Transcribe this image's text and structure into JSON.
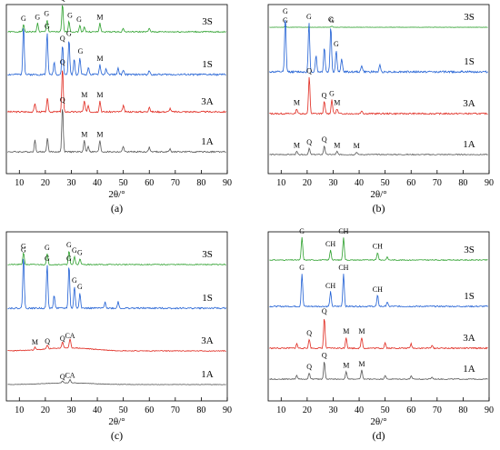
{
  "figure": {
    "panels": [
      {
        "id": "a",
        "caption": "(a)",
        "xlabel": "2θ/°",
        "x_ticks": [
          "10",
          "20",
          "30",
          "40",
          "50",
          "60",
          "70",
          "80",
          "90"
        ],
        "series": [
          {
            "name": "3S",
            "color": "#2ca02c",
            "peak_labels": [
              {
                "x": 17,
                "text": "G"
              },
              {
                "x": 20.5,
                "text": "G"
              },
              {
                "x": 26.6,
                "text": "Q"
              },
              {
                "x": 29.5,
                "text": "G"
              },
              {
                "x": 33,
                "text": "G"
              },
              {
                "x": 41,
                "text": "M"
              }
            ]
          },
          {
            "name": "1S",
            "color": "#1f5fd4",
            "peak_labels": [
              {
                "x": 11.6,
                "text": "G"
              },
              {
                "x": 20.7,
                "text": "G"
              },
              {
                "x": 26.6,
                "text": "Q"
              },
              {
                "x": 29.1,
                "text": "G"
              },
              {
                "x": 33.5,
                "text": "G"
              },
              {
                "x": 41,
                "text": "M"
              }
            ]
          },
          {
            "name": "3A",
            "color": "#e0281e",
            "peak_labels": [
              {
                "x": 26.6,
                "text": "Q"
              },
              {
                "x": 35,
                "text": "M"
              },
              {
                "x": 41,
                "text": "M"
              }
            ]
          },
          {
            "name": "1A",
            "color": "#555555",
            "peak_labels": [
              {
                "x": 26.6,
                "text": "Q"
              },
              {
                "x": 35,
                "text": "M"
              },
              {
                "x": 41,
                "text": "M"
              }
            ]
          }
        ]
      },
      {
        "id": "b",
        "caption": "(b)",
        "xlabel": "2θ/°",
        "x_ticks": [
          "10",
          "20",
          "30",
          "40",
          "50",
          "60",
          "70",
          "80",
          "90"
        ],
        "series": [
          {
            "name": "3S",
            "color": "#2ca02c",
            "peak_labels": [
              {
                "x": 11.6,
                "text": "G"
              },
              {
                "x": 29.5,
                "text": "G"
              }
            ]
          },
          {
            "name": "1S",
            "color": "#1f5fd4",
            "peak_labels": [
              {
                "x": 11.6,
                "text": "G"
              },
              {
                "x": 20.7,
                "text": "G"
              },
              {
                "x": 29.1,
                "text": "G"
              },
              {
                "x": 31.2,
                "text": "G"
              }
            ]
          },
          {
            "name": "3A",
            "color": "#e0281e",
            "peak_labels": [
              {
                "x": 20.8,
                "text": "Q"
              },
              {
                "x": 16,
                "text": "M"
              },
              {
                "x": 26.5,
                "text": "Q"
              },
              {
                "x": 29.5,
                "text": "G"
              },
              {
                "x": 31.5,
                "text": "M"
              }
            ]
          },
          {
            "name": "1A",
            "color": "#555555",
            "peak_labels": [
              {
                "x": 16,
                "text": "M"
              },
              {
                "x": 20.8,
                "text": "Q"
              },
              {
                "x": 26.6,
                "text": "Q"
              },
              {
                "x": 31.5,
                "text": "M"
              },
              {
                "x": 39,
                "text": "M"
              }
            ]
          }
        ]
      },
      {
        "id": "c",
        "caption": "(c)",
        "xlabel": "2θ/°",
        "x_ticks": [
          "10",
          "20",
          "30",
          "40",
          "50",
          "60",
          "70",
          "80",
          "90"
        ],
        "series": [
          {
            "name": "3S",
            "color": "#2ca02c",
            "peak_labels": [
              {
                "x": 11.6,
                "text": "G"
              },
              {
                "x": 20.7,
                "text": "G"
              },
              {
                "x": 29.1,
                "text": "G"
              },
              {
                "x": 31.2,
                "text": "G"
              },
              {
                "x": 33.3,
                "text": "G"
              }
            ]
          },
          {
            "name": "1S",
            "color": "#1f5fd4",
            "peak_labels": [
              {
                "x": 11.6,
                "text": "G"
              },
              {
                "x": 20.7,
                "text": "G"
              },
              {
                "x": 29.1,
                "text": "G"
              },
              {
                "x": 31.2,
                "text": "G"
              },
              {
                "x": 33.3,
                "text": "G"
              }
            ]
          },
          {
            "name": "3A",
            "color": "#e0281e",
            "peak_labels": [
              {
                "x": 16,
                "text": "M"
              },
              {
                "x": 20.8,
                "text": "Q"
              },
              {
                "x": 26.6,
                "text": "Q"
              },
              {
                "x": 29.5,
                "text": "CA"
              }
            ]
          },
          {
            "name": "1A",
            "color": "#555555",
            "peak_labels": [
              {
                "x": 26.6,
                "text": "Q"
              },
              {
                "x": 29.5,
                "text": "CA"
              }
            ]
          }
        ]
      },
      {
        "id": "d",
        "caption": "(d)",
        "xlabel": "2θ/°",
        "x_ticks": [
          "10",
          "20",
          "30",
          "40",
          "50",
          "60",
          "70",
          "80",
          "90"
        ],
        "series": [
          {
            "name": "3S",
            "color": "#2ca02c",
            "peak_labels": [
              {
                "x": 18,
                "text": "G"
              },
              {
                "x": 29,
                "text": "CH"
              },
              {
                "x": 34,
                "text": "CH"
              },
              {
                "x": 47.1,
                "text": "CH"
              }
            ]
          },
          {
            "name": "1S",
            "color": "#1f5fd4",
            "peak_labels": [
              {
                "x": 18,
                "text": "G"
              },
              {
                "x": 29,
                "text": "CH"
              },
              {
                "x": 34,
                "text": "CH"
              },
              {
                "x": 47.1,
                "text": "CH"
              }
            ]
          },
          {
            "name": "3A",
            "color": "#e0281e",
            "peak_labels": [
              {
                "x": 20.8,
                "text": "Q"
              },
              {
                "x": 26.6,
                "text": "Q"
              },
              {
                "x": 35,
                "text": "M"
              },
              {
                "x": 41,
                "text": "M"
              }
            ]
          },
          {
            "name": "1A",
            "color": "#555555",
            "peak_labels": [
              {
                "x": 20.8,
                "text": "Q"
              },
              {
                "x": 26.6,
                "text": "Q"
              },
              {
                "x": 35,
                "text": "M"
              },
              {
                "x": 41,
                "text": "M"
              }
            ]
          }
        ]
      }
    ]
  },
  "chart_data": [
    {
      "type": "line",
      "title": "(a)",
      "xlabel": "2θ/°",
      "ylabel": "",
      "xlim": [
        5,
        90
      ],
      "series": [
        {
          "name": "3S",
          "peaks": [
            [
              11.6,
              0.2
            ],
            [
              17,
              0.25
            ],
            [
              20.7,
              0.35
            ],
            [
              26.6,
              0.8
            ],
            [
              29.1,
              0.3
            ],
            [
              33.3,
              0.18
            ],
            [
              35,
              0.15
            ],
            [
              41,
              0.25
            ],
            [
              50,
              0.1
            ],
            [
              60,
              0.1
            ]
          ]
        },
        {
          "name": "1S",
          "peaks": [
            [
              11.6,
              1.0
            ],
            [
              20.7,
              0.85
            ],
            [
              23.4,
              0.25
            ],
            [
              26.6,
              0.6
            ],
            [
              29.1,
              0.7
            ],
            [
              31.1,
              0.3
            ],
            [
              33.3,
              0.35
            ],
            [
              36.6,
              0.15
            ],
            [
              41,
              0.2
            ],
            [
              43.4,
              0.12
            ],
            [
              48,
              0.12
            ],
            [
              50,
              0.1
            ],
            [
              60,
              0.08
            ]
          ]
        },
        {
          "name": "3A",
          "peaks": [
            [
              16,
              0.2
            ],
            [
              20.8,
              0.3
            ],
            [
              26.6,
              1.0
            ],
            [
              35,
              0.25
            ],
            [
              36.5,
              0.15
            ],
            [
              41,
              0.25
            ],
            [
              50,
              0.15
            ],
            [
              60,
              0.12
            ],
            [
              68,
              0.08
            ]
          ]
        },
        {
          "name": "1A",
          "peaks": [
            [
              16,
              0.3
            ],
            [
              20.8,
              0.35
            ],
            [
              26.6,
              1.2
            ],
            [
              35,
              0.3
            ],
            [
              36.5,
              0.15
            ],
            [
              41,
              0.3
            ],
            [
              50,
              0.15
            ],
            [
              60,
              0.12
            ],
            [
              68,
              0.08
            ]
          ]
        }
      ]
    },
    {
      "type": "line",
      "title": "(b)",
      "xlabel": "2θ/°",
      "ylabel": "",
      "xlim": [
        5,
        90
      ],
      "series": [
        {
          "name": "3S",
          "peaks": [
            [
              11.6,
              0.12
            ],
            [
              29.5,
              0.12
            ]
          ]
        },
        {
          "name": "1S",
          "peaks": [
            [
              11.6,
              1.0
            ],
            [
              20.7,
              0.9
            ],
            [
              23.4,
              0.3
            ],
            [
              26.6,
              0.45
            ],
            [
              29.1,
              0.85
            ],
            [
              31.2,
              0.4
            ],
            [
              33.3,
              0.25
            ],
            [
              41,
              0.12
            ],
            [
              48,
              0.12
            ]
          ]
        },
        {
          "name": "3A",
          "peaks": [
            [
              16,
              0.12
            ],
            [
              20.8,
              0.9
            ],
            [
              26.6,
              0.3
            ],
            [
              29.5,
              0.35
            ],
            [
              31.5,
              0.12
            ],
            [
              41,
              0.08
            ]
          ]
        },
        {
          "name": "1A",
          "peaks": [
            [
              16,
              0.12
            ],
            [
              20.8,
              0.25
            ],
            [
              26.6,
              0.35
            ],
            [
              31.5,
              0.12
            ],
            [
              39,
              0.1
            ]
          ]
        }
      ]
    },
    {
      "type": "line",
      "title": "(c)",
      "xlabel": "2θ/°",
      "ylabel": "",
      "xlim": [
        5,
        90
      ],
      "series": [
        {
          "name": "3S",
          "peaks": [
            [
              11.6,
              0.45
            ],
            [
              20.7,
              0.4
            ],
            [
              29.1,
              0.5
            ],
            [
              31.2,
              0.3
            ],
            [
              33.3,
              0.22
            ]
          ]
        },
        {
          "name": "1S",
          "peaks": [
            [
              11.6,
              1.2
            ],
            [
              20.7,
              1.0
            ],
            [
              23.4,
              0.3
            ],
            [
              29.1,
              1.0
            ],
            [
              31.2,
              0.5
            ],
            [
              33.3,
              0.35
            ],
            [
              43,
              0.15
            ],
            [
              48,
              0.15
            ]
          ]
        },
        {
          "name": "3A",
          "peaks": [
            [
              16,
              0.1
            ],
            [
              20.8,
              0.15
            ],
            [
              26.6,
              0.25
            ],
            [
              29.5,
              0.35
            ]
          ]
        },
        {
          "name": "1A",
          "peaks": [
            [
              26.6,
              0.15
            ],
            [
              29.5,
              0.25
            ]
          ]
        }
      ]
    },
    {
      "type": "line",
      "title": "(d)",
      "xlabel": "2θ/°",
      "ylabel": "",
      "xlim": [
        5,
        90
      ],
      "series": [
        {
          "name": "3S",
          "peaks": [
            [
              18,
              0.9
            ],
            [
              29,
              0.4
            ],
            [
              34,
              0.9
            ],
            [
              47.1,
              0.3
            ],
            [
              50.8,
              0.12
            ]
          ]
        },
        {
          "name": "1S",
          "peaks": [
            [
              18,
              0.9
            ],
            [
              29,
              0.4
            ],
            [
              34,
              0.9
            ],
            [
              47.1,
              0.3
            ],
            [
              50.8,
              0.12
            ]
          ]
        },
        {
          "name": "3A",
          "peaks": [
            [
              16,
              0.12
            ],
            [
              20.8,
              0.25
            ],
            [
              26.6,
              0.85
            ],
            [
              35,
              0.3
            ],
            [
              41,
              0.3
            ],
            [
              50,
              0.15
            ],
            [
              60,
              0.12
            ],
            [
              68,
              0.08
            ]
          ]
        },
        {
          "name": "1A",
          "peaks": [
            [
              16,
              0.15
            ],
            [
              20.8,
              0.25
            ],
            [
              26.6,
              0.7
            ],
            [
              35,
              0.3
            ],
            [
              41,
              0.35
            ],
            [
              50,
              0.15
            ],
            [
              60,
              0.12
            ],
            [
              68,
              0.08
            ]
          ]
        }
      ]
    }
  ]
}
